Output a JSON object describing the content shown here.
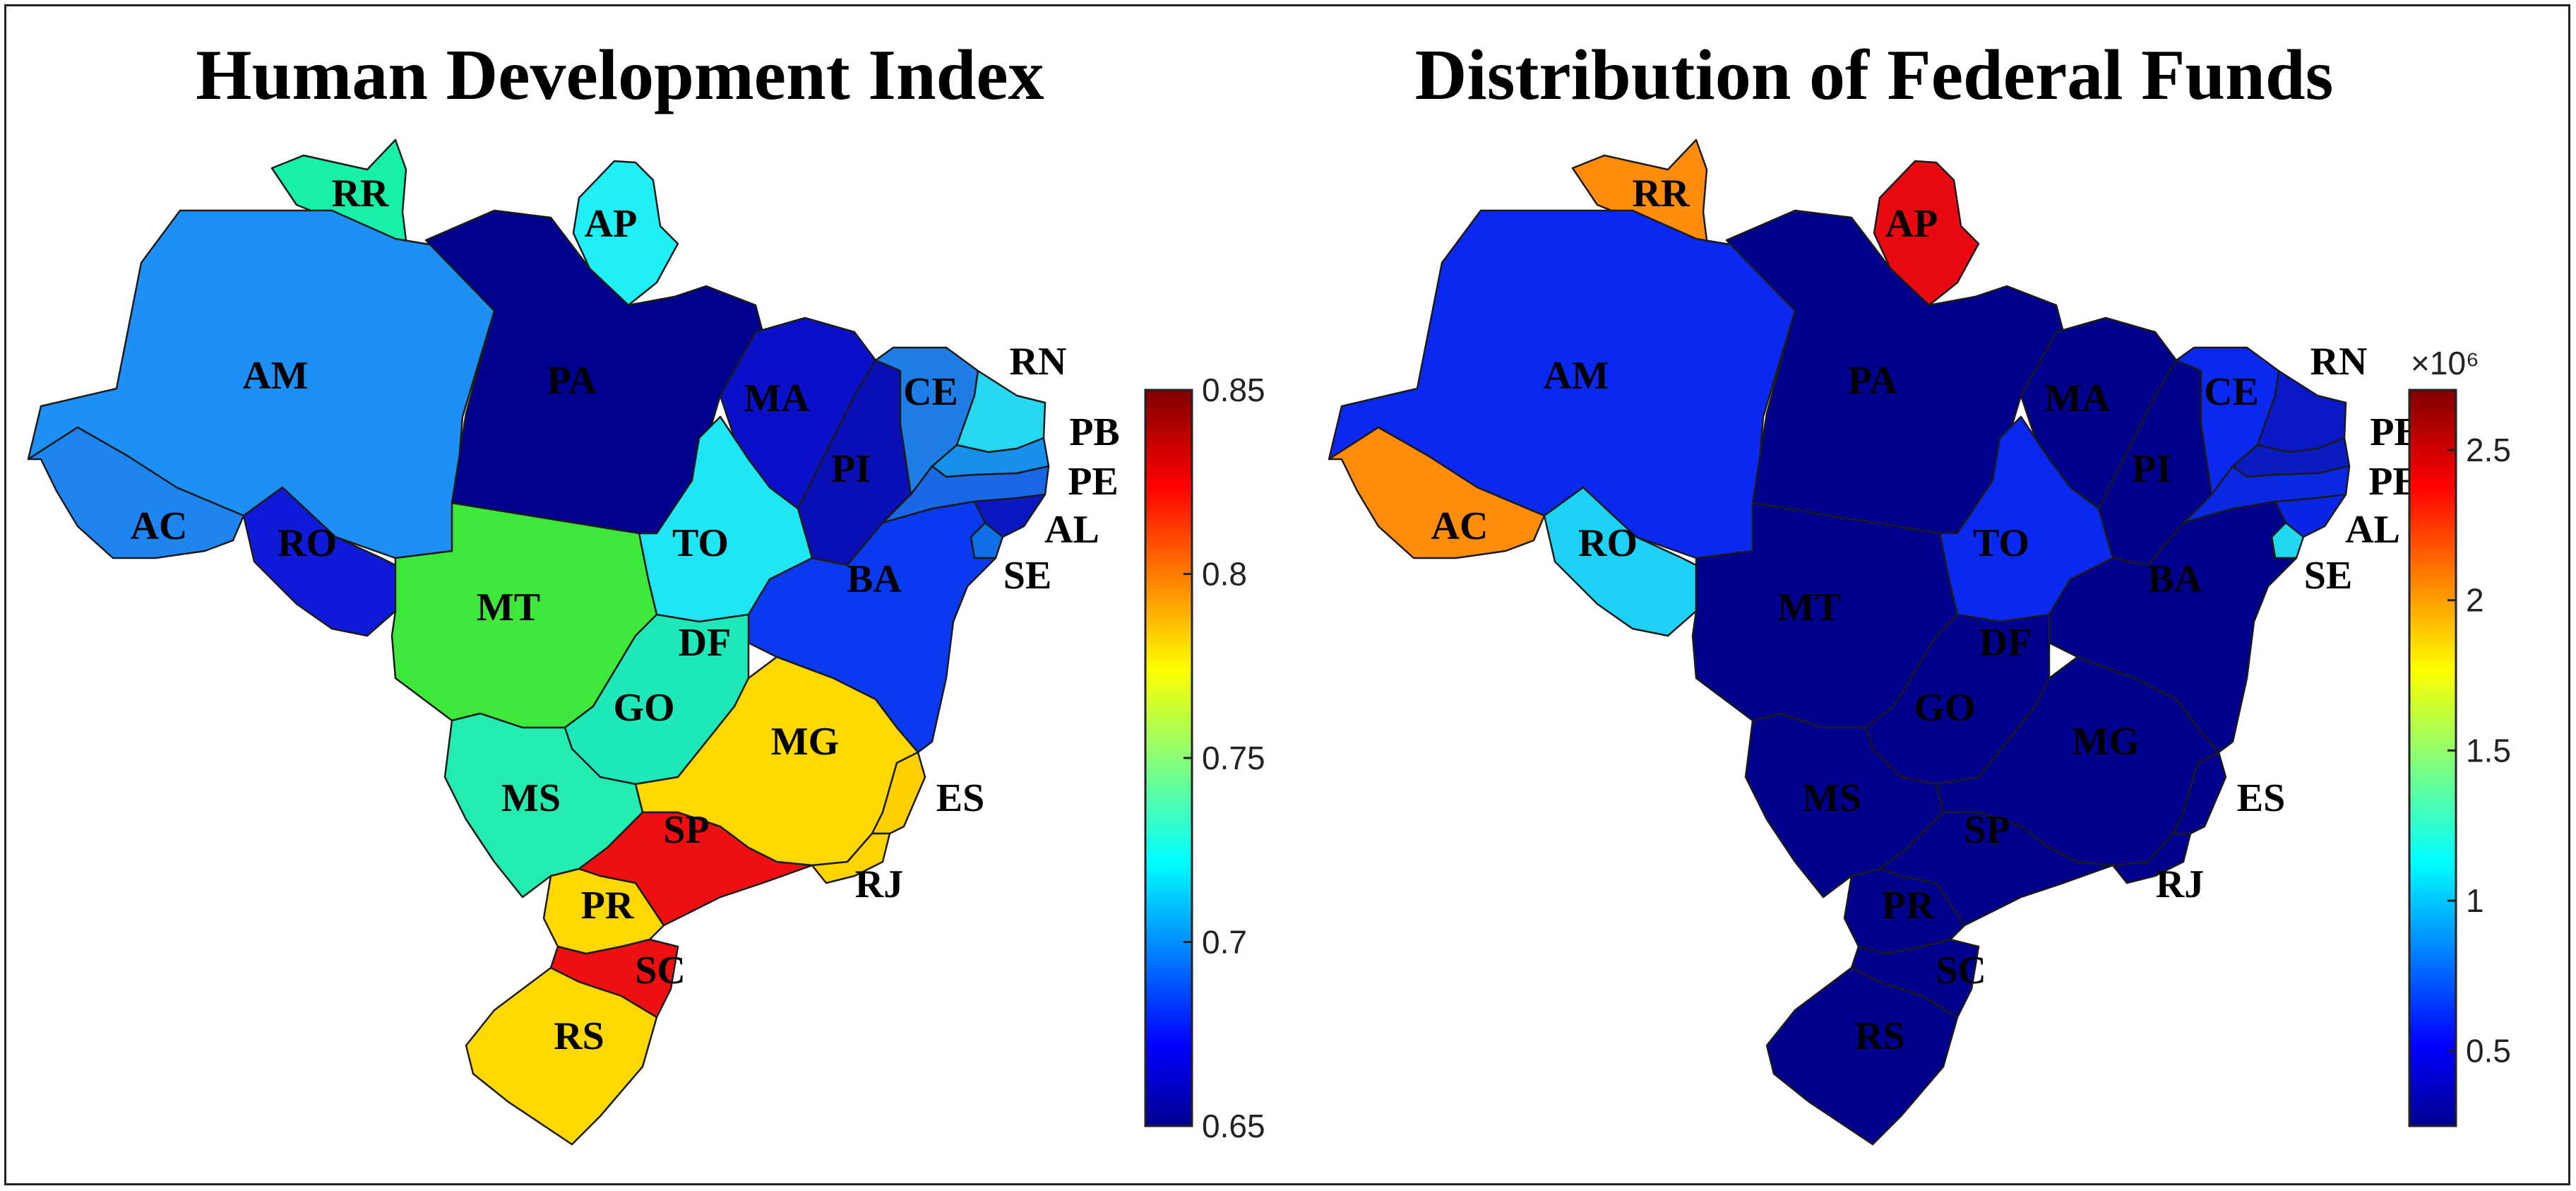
{
  "maps": [
    {
      "title": "Human Development Index",
      "colorbar": {
        "min": 0.65,
        "max": 0.85,
        "ticks": [
          "0.85",
          "0.8",
          "0.75",
          "0.7",
          "0.65"
        ],
        "tick_values": [
          0.85,
          0.8,
          0.75,
          0.7,
          0.65
        ],
        "exponent": ""
      },
      "states": {
        "RR": {
          "label": "RR",
          "color": "#17f0a8"
        },
        "AP": {
          "label": "AP",
          "color": "#1ef0f5"
        },
        "AM": {
          "label": "AM",
          "color": "#1e8ff5"
        },
        "PA": {
          "label": "PA",
          "color": "#00008f"
        },
        "MA": {
          "label": "MA",
          "color": "#0a10c8"
        },
        "CE": {
          "label": "CE",
          "color": "#1e7ee6"
        },
        "RN": {
          "label": "RN",
          "color": "#26d8ef"
        },
        "PB": {
          "label": "PB",
          "color": "#1690ea"
        },
        "PE": {
          "label": "PE",
          "color": "#1a68e6"
        },
        "AL": {
          "label": "AL",
          "color": "#0a18c2"
        },
        "SE": {
          "label": "SE",
          "color": "#1070e8"
        },
        "PI": {
          "label": "PI",
          "color": "#0a0fb5"
        },
        "AC": {
          "label": "AC",
          "color": "#1e84ef"
        },
        "RO": {
          "label": "RO",
          "color": "#0e1ad8"
        },
        "TO": {
          "label": "TO",
          "color": "#1ee6f5"
        },
        "BA": {
          "label": "BA",
          "color": "#0a3af0"
        },
        "MT": {
          "label": "MT",
          "color": "#3ee83a"
        },
        "DF": {
          "label": "DF",
          "color": "#e00018"
        },
        "GO": {
          "label": "GO",
          "color": "#1ee8b8"
        },
        "MG": {
          "label": "MG",
          "color": "#ffd800"
        },
        "ES": {
          "label": "ES",
          "color": "#ffd000"
        },
        "MS": {
          "label": "MS",
          "color": "#24ecb0"
        },
        "SP": {
          "label": "SP",
          "color": "#ee1010"
        },
        "RJ": {
          "label": "RJ",
          "color": "#ffd400"
        },
        "PR": {
          "label": "PR",
          "color": "#ffd800"
        },
        "SC": {
          "label": "SC",
          "color": "#ee1010"
        },
        "RS": {
          "label": "RS",
          "color": "#ffd800"
        }
      }
    },
    {
      "title": "Distribution of Federal Funds",
      "colorbar": {
        "min": 0.25,
        "max": 2.7,
        "ticks": [
          "2.5",
          "2",
          "1.5",
          "1",
          "0.5"
        ],
        "tick_values": [
          2.5,
          2.0,
          1.5,
          1.0,
          0.5
        ],
        "exponent": "×10⁶"
      },
      "states": {
        "RR": {
          "label": "RR",
          "color": "#ff8c0a"
        },
        "AP": {
          "label": "AP",
          "color": "#e80a10"
        },
        "AM": {
          "label": "AM",
          "color": "#0a28f0"
        },
        "PA": {
          "label": "PA",
          "color": "#00008c"
        },
        "MA": {
          "label": "MA",
          "color": "#00008c"
        },
        "CE": {
          "label": "CE",
          "color": "#0a28f0"
        },
        "RN": {
          "label": "RN",
          "color": "#0a18c8"
        },
        "PB": {
          "label": "PB",
          "color": "#0a1cc0"
        },
        "PE": {
          "label": "PE",
          "color": "#0a28e0"
        },
        "AL": {
          "label": "AL",
          "color": "#0a24e8"
        },
        "SE": {
          "label": "SE",
          "color": "#20d8f0"
        },
        "PI": {
          "label": "PI",
          "color": "#00008c"
        },
        "AC": {
          "label": "AC",
          "color": "#ff8c0a"
        },
        "RO": {
          "label": "RO",
          "color": "#1ed2f5"
        },
        "TO": {
          "label": "TO",
          "color": "#0a28f0"
        },
        "BA": {
          "label": "BA",
          "color": "#00008c"
        },
        "MT": {
          "label": "MT",
          "color": "#00008c"
        },
        "DF": {
          "label": "DF",
          "color": "#1ed2f5"
        },
        "GO": {
          "label": "GO",
          "color": "#00008c"
        },
        "MG": {
          "label": "MG",
          "color": "#00008c"
        },
        "ES": {
          "label": "ES",
          "color": "#00008c"
        },
        "MS": {
          "label": "MS",
          "color": "#00008c"
        },
        "SP": {
          "label": "SP",
          "color": "#00008c"
        },
        "RJ": {
          "label": "RJ",
          "color": "#00008c"
        },
        "PR": {
          "label": "PR",
          "color": "#00008c"
        },
        "SC": {
          "label": "SC",
          "color": "#00008c"
        },
        "RS": {
          "label": "RS",
          "color": "#00008c"
        }
      }
    }
  ],
  "colormap": "jet"
}
